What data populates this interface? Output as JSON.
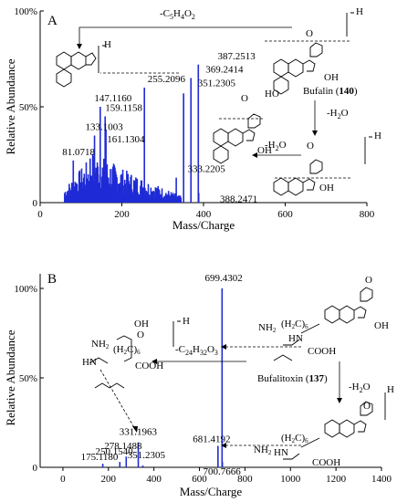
{
  "chart_data": [
    {
      "type": "bar",
      "panel_label": "A",
      "xlabel": "Mass/Charge",
      "ylabel": "Relative Abundance",
      "xlim": [
        0,
        800
      ],
      "ylim": [
        0,
        100
      ],
      "xticks": [
        0,
        200,
        400,
        600,
        800
      ],
      "yticks": [
        "0",
        "50%",
        "100%"
      ],
      "peaks": [
        {
          "x": 81.0718,
          "y": 22,
          "label": "81.0718"
        },
        {
          "x": 133.1003,
          "y": 35,
          "label": "133.1003"
        },
        {
          "x": 147.116,
          "y": 50,
          "label": "147.1160"
        },
        {
          "x": 159.1158,
          "y": 45,
          "label": "159.1158"
        },
        {
          "x": 161.1304,
          "y": 38,
          "label": "161.1304"
        },
        {
          "x": 255.2096,
          "y": 60,
          "label": "255.2096"
        },
        {
          "x": 333.2205,
          "y": 13,
          "label": "333.2205"
        },
        {
          "x": 351.2305,
          "y": 57,
          "label": "351.2305"
        },
        {
          "x": 369.2414,
          "y": 65,
          "label": "369.2414"
        },
        {
          "x": 387.2513,
          "y": 72,
          "label": "387.2513"
        },
        {
          "x": 388.2471,
          "y": 5,
          "label": "388.2471"
        }
      ],
      "annotations": [
        "-C5H4O2",
        "Bufalin (140)",
        "-H2O",
        "-H2O"
      ]
    },
    {
      "type": "bar",
      "panel_label": "B",
      "xlabel": "Mass/Charge",
      "ylabel": "Relative Abundance",
      "xlim": [
        -100,
        1400
      ],
      "ylim": [
        0,
        100
      ],
      "xticks": [
        0,
        200,
        400,
        600,
        800,
        1000,
        1200,
        1400
      ],
      "yticks": [
        "0",
        "50%",
        "100%"
      ],
      "peaks": [
        {
          "x": 175.118,
          "y": 2,
          "label": "175.1180"
        },
        {
          "x": 250.154,
          "y": 3,
          "label": "250.1540"
        },
        {
          "x": 278.1488,
          "y": 6,
          "label": "278.1488"
        },
        {
          "x": 331.1963,
          "y": 14,
          "label": "331.1963"
        },
        {
          "x": 351.2305,
          "y": 1,
          "label": "351.2305"
        },
        {
          "x": 681.4192,
          "y": 12,
          "label": "681.4192"
        },
        {
          "x": 699.4302,
          "y": 100,
          "label": "699.4302"
        },
        {
          "x": 700.7666,
          "y": 3,
          "label": "700.7666"
        }
      ],
      "annotations": [
        "-C24H32O3",
        "Bufalitoxin (137)",
        "-H2O"
      ]
    }
  ],
  "labels": {
    "a_formula_loss": "-C",
    "a_formula_loss_tail": "H",
    "b_formula_loss": "-C",
    "bufalin": "Bufalin (",
    "bufalin_num": "140",
    "bufalitoxin": "Bufalitoxin (",
    "bufalitoxin_num": "137",
    "h2o": "-H",
    "close_paren": ")",
    "o_char": "O",
    "oh": "OH",
    "ho": "HO",
    "nh2": "NH",
    "nh": "NH",
    "hn": "HN",
    "cooh": "COOH",
    "ch2_6": "(H",
    "h_plus": "H"
  }
}
